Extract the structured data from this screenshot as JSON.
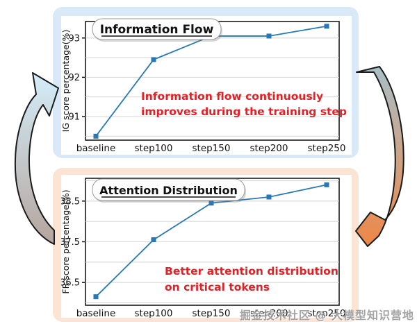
{
  "watermark": {
    "text": "掘金技术社区 @ 大模型知识营地"
  },
  "style": {
    "top_panel_bg": "#d9e9f8",
    "bottom_panel_bg": "#fbe4d3",
    "line_color": "#2878b5",
    "annotation_color": "#e02126",
    "plot_border": "#1a1a1a",
    "grid_color": "#d9d9d9",
    "arrow_left_gradient": [
      "#b4a29a",
      "#d3ecf8"
    ],
    "arrow_right_gradient": [
      "#a9bfc9",
      "#ee8747"
    ],
    "arrow_outline": "#1a1a1a"
  },
  "chart_data": [
    {
      "type": "line",
      "title": "Information Flow",
      "categories": [
        "baseline",
        "step100",
        "step150",
        "step200",
        "step250"
      ],
      "values": [
        90.5,
        92.45,
        93.05,
        93.05,
        93.3
      ],
      "ylabel": "IG score percentage(%)",
      "xlabel": "",
      "yticks": [
        91,
        92,
        93
      ],
      "ylim": [
        90.4,
        93.42
      ],
      "grid": true,
      "legend": false,
      "marker": "square",
      "annotation": [
        "Information flow continuously",
        "improves during the training step"
      ]
    },
    {
      "type": "line",
      "title": "Attention Distribution",
      "categories": [
        "baseline",
        "step100",
        "step150",
        "step200",
        "step250"
      ],
      "values": [
        36.15,
        37.55,
        38.45,
        38.6,
        38.9
      ],
      "ylabel": "FR score percentage(%)",
      "xlabel": "",
      "yticks": [
        36.5,
        37.5,
        38.5
      ],
      "ylim": [
        35.94,
        39.06
      ],
      "grid": true,
      "legend": false,
      "marker": "square",
      "annotation": [
        "Better attention distribution",
        "on critical tokens"
      ]
    }
  ]
}
